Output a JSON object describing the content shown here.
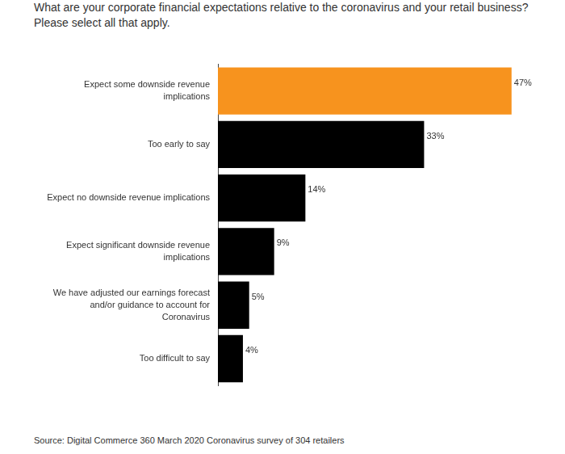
{
  "chart_data": {
    "type": "bar",
    "orientation": "horizontal",
    "title": "What are your corporate financial expectations relative to the coronavirus and your retail business? Please select all that apply.",
    "source": "Source: Digital Commerce 360  March 2020 Coronavirus survey  of 304 retailers",
    "categories": [
      "Expect some downside revenue implications",
      "Too early to say",
      "Expect no downside revenue implications",
      "Expect significant downside revenue implications",
      "We have adjusted our earnings forecast and/or guidance to account for Coronavirus",
      "Too difficult to say"
    ],
    "values": [
      47,
      33,
      14,
      9,
      5,
      4
    ],
    "value_labels": [
      "47%",
      "33%",
      "14%",
      "9%",
      "5%",
      "4%"
    ],
    "colors": [
      "#f7931e",
      "#000000",
      "#000000",
      "#000000",
      "#000000",
      "#000000"
    ],
    "xlim": [
      0,
      50
    ],
    "grid": false,
    "tick_labels": "y",
    "data_labels": true
  }
}
